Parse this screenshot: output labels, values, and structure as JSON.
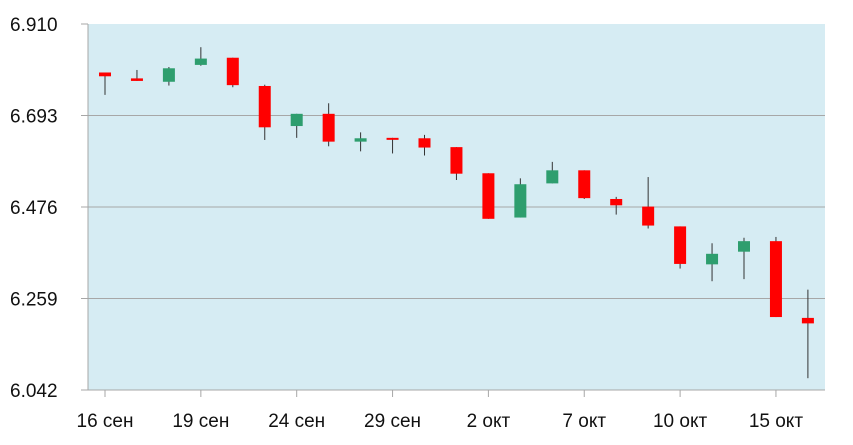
{
  "chart_data": {
    "type": "candlestick",
    "title": "",
    "xlabel": "",
    "ylabel": "",
    "ylim": [
      6.042,
      6.91
    ],
    "y_ticks": [
      "6.910",
      "6.693",
      "6.476",
      "6.259",
      "6.042"
    ],
    "x_ticks": [
      {
        "label": "16 сен",
        "index": 0
      },
      {
        "label": "19 сен",
        "index": 3
      },
      {
        "label": "24 сен",
        "index": 6
      },
      {
        "label": "29 сен",
        "index": 9
      },
      {
        "label": "2 окт",
        "index": 12
      },
      {
        "label": "7 окт",
        "index": 15
      },
      {
        "label": "10 окт",
        "index": 18
      },
      {
        "label": "15 окт",
        "index": 21
      }
    ],
    "grid": true,
    "legend": "none",
    "colors": {
      "plot_bg": "#d6ecf3",
      "up": "#2e9e6e",
      "down": "#ff0000",
      "grid": "#a7a7a7",
      "wick": "#333333"
    },
    "candles": [
      {
        "open": 6.795,
        "close": 6.786,
        "high": 6.795,
        "low": 6.742
      },
      {
        "open": 6.781,
        "close": 6.775,
        "high": 6.801,
        "low": 6.775
      },
      {
        "open": 6.773,
        "close": 6.805,
        "high": 6.808,
        "low": 6.764
      },
      {
        "open": 6.813,
        "close": 6.828,
        "high": 6.855,
        "low": 6.811
      },
      {
        "open": 6.83,
        "close": 6.765,
        "high": 6.83,
        "low": 6.76
      },
      {
        "open": 6.763,
        "close": 6.665,
        "high": 6.766,
        "low": 6.635
      },
      {
        "open": 6.668,
        "close": 6.697,
        "high": 6.697,
        "low": 6.64
      },
      {
        "open": 6.697,
        "close": 6.631,
        "high": 6.722,
        "low": 6.62
      },
      {
        "open": 6.631,
        "close": 6.639,
        "high": 6.653,
        "low": 6.608
      },
      {
        "open": 6.64,
        "close": 6.638,
        "high": 6.64,
        "low": 6.603
      },
      {
        "open": 6.639,
        "close": 6.617,
        "high": 6.647,
        "low": 6.598
      },
      {
        "open": 6.618,
        "close": 6.555,
        "high": 6.618,
        "low": 6.54
      },
      {
        "open": 6.556,
        "close": 6.448,
        "high": 6.556,
        "low": 6.448
      },
      {
        "open": 6.451,
        "close": 6.53,
        "high": 6.544,
        "low": 6.451
      },
      {
        "open": 6.532,
        "close": 6.563,
        "high": 6.583,
        "low": 6.532
      },
      {
        "open": 6.563,
        "close": 6.497,
        "high": 6.563,
        "low": 6.495
      },
      {
        "open": 6.495,
        "close": 6.48,
        "high": 6.5,
        "low": 6.458
      },
      {
        "open": 6.477,
        "close": 6.432,
        "high": 6.547,
        "low": 6.425
      },
      {
        "open": 6.43,
        "close": 6.341,
        "high": 6.43,
        "low": 6.33
      },
      {
        "open": 6.34,
        "close": 6.365,
        "high": 6.39,
        "low": 6.3
      },
      {
        "open": 6.37,
        "close": 6.395,
        "high": 6.403,
        "low": 6.305
      },
      {
        "open": 6.395,
        "close": 6.215,
        "high": 6.405,
        "low": 6.215
      },
      {
        "open": 6.213,
        "close": 6.2,
        "high": 6.28,
        "low": 6.07
      }
    ]
  }
}
